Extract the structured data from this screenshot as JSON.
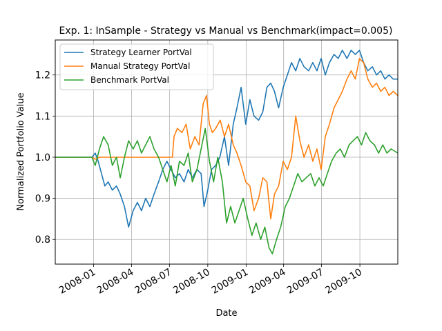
{
  "chart_data": {
    "type": "line",
    "title": "Exp. 1: InSample - Strategy vs Manual vs Benchmark(impact=0.005)",
    "xlabel": "Date",
    "ylabel": "Normalized Portfolio Value",
    "xlim": [
      "2007-10-01",
      "2009-12-31"
    ],
    "ylim": [
      0.74,
      1.285
    ],
    "x_ticks": [
      "2008-01",
      "2008-04",
      "2008-07",
      "2008-10",
      "2009-01",
      "2009-04",
      "2009-07",
      "2009-10"
    ],
    "y_ticks": [
      0.8,
      0.9,
      1.0,
      1.1,
      1.2
    ],
    "y_tick_labels": [
      "0.8",
      "0.9",
      "1.0",
      "1.1",
      "1.2"
    ],
    "grid": true,
    "legend_position": "top-left",
    "series": [
      {
        "name": "Strategy Learner PortVal",
        "color": "#1f77b4",
        "points": [
          [
            "2007-10-01",
            1.0
          ],
          [
            "2007-12-28",
            1.0
          ],
          [
            "2008-01-05",
            1.01
          ],
          [
            "2008-01-12",
            0.99
          ],
          [
            "2008-01-20",
            0.96
          ],
          [
            "2008-01-28",
            0.93
          ],
          [
            "2008-02-05",
            0.94
          ],
          [
            "2008-02-15",
            0.92
          ],
          [
            "2008-02-25",
            0.93
          ],
          [
            "2008-03-05",
            0.91
          ],
          [
            "2008-03-15",
            0.88
          ],
          [
            "2008-03-25",
            0.83
          ],
          [
            "2008-04-05",
            0.87
          ],
          [
            "2008-04-15",
            0.89
          ],
          [
            "2008-04-25",
            0.87
          ],
          [
            "2008-05-05",
            0.9
          ],
          [
            "2008-05-15",
            0.88
          ],
          [
            "2008-05-25",
            0.91
          ],
          [
            "2008-06-05",
            0.94
          ],
          [
            "2008-06-15",
            0.97
          ],
          [
            "2008-06-25",
            0.99
          ],
          [
            "2008-07-05",
            0.97
          ],
          [
            "2008-07-15",
            0.95
          ],
          [
            "2008-07-25",
            0.96
          ],
          [
            "2008-08-05",
            0.94
          ],
          [
            "2008-08-15",
            0.97
          ],
          [
            "2008-08-25",
            0.95
          ],
          [
            "2008-09-05",
            0.97
          ],
          [
            "2008-09-15",
            0.96
          ],
          [
            "2008-09-22",
            0.88
          ],
          [
            "2008-10-01",
            0.92
          ],
          [
            "2008-10-10",
            0.97
          ],
          [
            "2008-10-20",
            0.98
          ],
          [
            "2008-10-30",
            1.0
          ],
          [
            "2008-11-10",
            1.05
          ],
          [
            "2008-11-20",
            0.98
          ],
          [
            "2008-12-01",
            1.08
          ],
          [
            "2008-12-10",
            1.12
          ],
          [
            "2008-12-20",
            1.17
          ],
          [
            "2008-12-31",
            1.08
          ],
          [
            "2009-01-10",
            1.14
          ],
          [
            "2009-01-20",
            1.1
          ],
          [
            "2009-01-31",
            1.09
          ],
          [
            "2009-02-10",
            1.11
          ],
          [
            "2009-02-20",
            1.17
          ],
          [
            "2009-03-01",
            1.18
          ],
          [
            "2009-03-10",
            1.16
          ],
          [
            "2009-03-20",
            1.12
          ],
          [
            "2009-03-31",
            1.17
          ],
          [
            "2009-04-10",
            1.2
          ],
          [
            "2009-04-20",
            1.23
          ],
          [
            "2009-04-30",
            1.21
          ],
          [
            "2009-05-10",
            1.24
          ],
          [
            "2009-05-20",
            1.22
          ],
          [
            "2009-05-31",
            1.21
          ],
          [
            "2009-06-10",
            1.23
          ],
          [
            "2009-06-20",
            1.21
          ],
          [
            "2009-06-30",
            1.24
          ],
          [
            "2009-07-10",
            1.2
          ],
          [
            "2009-07-20",
            1.23
          ],
          [
            "2009-07-31",
            1.25
          ],
          [
            "2009-08-10",
            1.24
          ],
          [
            "2009-08-20",
            1.26
          ],
          [
            "2009-08-31",
            1.24
          ],
          [
            "2009-09-10",
            1.26
          ],
          [
            "2009-09-20",
            1.25
          ],
          [
            "2009-09-30",
            1.26
          ],
          [
            "2009-10-10",
            1.23
          ],
          [
            "2009-10-20",
            1.21
          ],
          [
            "2009-10-31",
            1.22
          ],
          [
            "2009-11-10",
            1.2
          ],
          [
            "2009-11-20",
            1.21
          ],
          [
            "2009-11-30",
            1.19
          ],
          [
            "2009-12-10",
            1.2
          ],
          [
            "2009-12-20",
            1.19
          ],
          [
            "2009-12-31",
            1.19
          ]
        ]
      },
      {
        "name": "Manual Strategy PortVal",
        "color": "#ff7f0e",
        "points": [
          [
            "2007-10-01",
            1.0
          ],
          [
            "2007-12-28",
            1.0
          ],
          [
            "2008-01-05",
            0.995
          ],
          [
            "2008-01-15",
            1.0
          ],
          [
            "2008-07-08",
            1.0
          ],
          [
            "2008-07-12",
            1.05
          ],
          [
            "2008-07-20",
            1.07
          ],
          [
            "2008-07-31",
            1.06
          ],
          [
            "2008-08-10",
            1.08
          ],
          [
            "2008-08-20",
            1.02
          ],
          [
            "2008-08-31",
            1.05
          ],
          [
            "2008-09-10",
            1.03
          ],
          [
            "2008-09-20",
            1.13
          ],
          [
            "2008-09-28",
            1.15
          ],
          [
            "2008-10-05",
            1.08
          ],
          [
            "2008-10-12",
            1.06
          ],
          [
            "2008-10-20",
            1.07
          ],
          [
            "2008-10-31",
            1.09
          ],
          [
            "2008-11-10",
            1.05
          ],
          [
            "2008-11-20",
            1.08
          ],
          [
            "2008-12-01",
            1.03
          ],
          [
            "2008-12-10",
            1.01
          ],
          [
            "2008-12-20",
            0.98
          ],
          [
            "2008-12-31",
            0.94
          ],
          [
            "2009-01-10",
            0.93
          ],
          [
            "2009-01-20",
            0.87
          ],
          [
            "2009-01-31",
            0.9
          ],
          [
            "2009-02-10",
            0.95
          ],
          [
            "2009-02-20",
            0.94
          ],
          [
            "2009-03-01",
            0.85
          ],
          [
            "2009-03-10",
            0.91
          ],
          [
            "2009-03-20",
            0.93
          ],
          [
            "2009-03-31",
            0.99
          ],
          [
            "2009-04-10",
            0.97
          ],
          [
            "2009-04-20",
            1.0
          ],
          [
            "2009-04-30",
            1.1
          ],
          [
            "2009-05-10",
            1.04
          ],
          [
            "2009-05-20",
            1.0
          ],
          [
            "2009-05-31",
            1.03
          ],
          [
            "2009-06-10",
            0.99
          ],
          [
            "2009-06-20",
            1.02
          ],
          [
            "2009-06-30",
            0.97
          ],
          [
            "2009-07-10",
            1.05
          ],
          [
            "2009-07-20",
            1.08
          ],
          [
            "2009-07-31",
            1.12
          ],
          [
            "2009-08-10",
            1.14
          ],
          [
            "2009-08-20",
            1.16
          ],
          [
            "2009-08-31",
            1.19
          ],
          [
            "2009-09-10",
            1.21
          ],
          [
            "2009-09-20",
            1.19
          ],
          [
            "2009-09-30",
            1.24
          ],
          [
            "2009-10-10",
            1.23
          ],
          [
            "2009-10-20",
            1.19
          ],
          [
            "2009-10-31",
            1.17
          ],
          [
            "2009-11-10",
            1.18
          ],
          [
            "2009-11-20",
            1.16
          ],
          [
            "2009-11-30",
            1.17
          ],
          [
            "2009-12-10",
            1.15
          ],
          [
            "2009-12-20",
            1.16
          ],
          [
            "2009-12-31",
            1.15
          ]
        ]
      },
      {
        "name": "Benchmark PortVal",
        "color": "#2ca02c",
        "points": [
          [
            "2007-10-01",
            1.0
          ],
          [
            "2007-12-28",
            1.0
          ],
          [
            "2008-01-05",
            0.98
          ],
          [
            "2008-01-15",
            1.02
          ],
          [
            "2008-01-25",
            1.05
          ],
          [
            "2008-02-05",
            1.03
          ],
          [
            "2008-02-15",
            0.98
          ],
          [
            "2008-02-25",
            1.0
          ],
          [
            "2008-03-05",
            0.95
          ],
          [
            "2008-03-15",
            1.0
          ],
          [
            "2008-03-25",
            1.04
          ],
          [
            "2008-04-05",
            1.02
          ],
          [
            "2008-04-15",
            1.04
          ],
          [
            "2008-04-25",
            1.01
          ],
          [
            "2008-05-05",
            1.03
          ],
          [
            "2008-05-15",
            1.05
          ],
          [
            "2008-05-25",
            1.02
          ],
          [
            "2008-06-05",
            1.0
          ],
          [
            "2008-06-15",
            0.97
          ],
          [
            "2008-06-25",
            0.94
          ],
          [
            "2008-07-05",
            0.98
          ],
          [
            "2008-07-15",
            0.93
          ],
          [
            "2008-07-25",
            0.99
          ],
          [
            "2008-08-05",
            0.98
          ],
          [
            "2008-08-15",
            1.01
          ],
          [
            "2008-08-25",
            0.94
          ],
          [
            "2008-09-05",
            0.97
          ],
          [
            "2008-09-15",
            1.02
          ],
          [
            "2008-09-25",
            1.07
          ],
          [
            "2008-10-05",
            0.99
          ],
          [
            "2008-10-15",
            0.94
          ],
          [
            "2008-10-25",
            1.0
          ],
          [
            "2008-11-05",
            0.94
          ],
          [
            "2008-11-15",
            0.84
          ],
          [
            "2008-11-25",
            0.88
          ],
          [
            "2008-12-05",
            0.84
          ],
          [
            "2008-12-15",
            0.87
          ],
          [
            "2008-12-25",
            0.9
          ],
          [
            "2009-01-05",
            0.85
          ],
          [
            "2009-01-15",
            0.81
          ],
          [
            "2009-01-25",
            0.84
          ],
          [
            "2009-02-05",
            0.8
          ],
          [
            "2009-02-15",
            0.83
          ],
          [
            "2009-02-25",
            0.78
          ],
          [
            "2009-03-05",
            0.765
          ],
          [
            "2009-03-15",
            0.8
          ],
          [
            "2009-03-25",
            0.83
          ],
          [
            "2009-04-05",
            0.88
          ],
          [
            "2009-04-15",
            0.9
          ],
          [
            "2009-04-25",
            0.93
          ],
          [
            "2009-05-05",
            0.96
          ],
          [
            "2009-05-15",
            0.94
          ],
          [
            "2009-05-25",
            0.95
          ],
          [
            "2009-06-05",
            0.96
          ],
          [
            "2009-06-15",
            0.93
          ],
          [
            "2009-06-25",
            0.95
          ],
          [
            "2009-07-05",
            0.93
          ],
          [
            "2009-07-15",
            0.96
          ],
          [
            "2009-07-25",
            0.99
          ],
          [
            "2009-08-05",
            1.01
          ],
          [
            "2009-08-15",
            1.02
          ],
          [
            "2009-08-25",
            1.0
          ],
          [
            "2009-09-05",
            1.03
          ],
          [
            "2009-09-15",
            1.04
          ],
          [
            "2009-09-25",
            1.05
          ],
          [
            "2009-10-05",
            1.03
          ],
          [
            "2009-10-15",
            1.06
          ],
          [
            "2009-10-25",
            1.04
          ],
          [
            "2009-11-05",
            1.03
          ],
          [
            "2009-11-15",
            1.01
          ],
          [
            "2009-11-25",
            1.03
          ],
          [
            "2009-12-05",
            1.01
          ],
          [
            "2009-12-15",
            1.02
          ],
          [
            "2009-12-31",
            1.01
          ]
        ]
      }
    ]
  }
}
